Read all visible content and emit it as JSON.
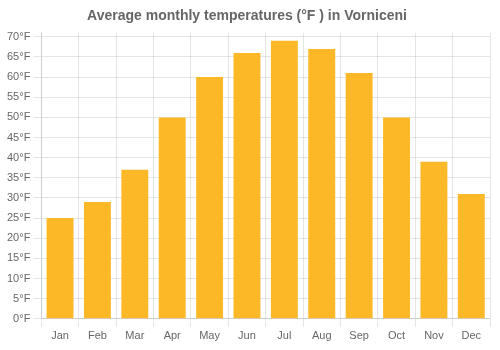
{
  "chart_data": {
    "type": "bar",
    "title": "Average monthly temperatures (°F ) in Vorniceni",
    "categories": [
      "Jan",
      "Feb",
      "Mar",
      "Apr",
      "May",
      "Jun",
      "Jul",
      "Aug",
      "Sep",
      "Oct",
      "Nov",
      "Dec"
    ],
    "values": [
      25,
      29,
      37,
      50,
      60,
      66,
      69,
      67,
      61,
      50,
      39,
      31
    ],
    "color": "#FDB827",
    "ylim": [
      0,
      71
    ],
    "yticks": [
      {
        "value": 0,
        "label": "0°F"
      },
      {
        "value": 5,
        "label": "5°F"
      },
      {
        "value": 10,
        "label": "10°F"
      },
      {
        "value": 15,
        "label": "15°F"
      },
      {
        "value": 20,
        "label": "20°F"
      },
      {
        "value": 25,
        "label": "25°F"
      },
      {
        "value": 30,
        "label": "30°F"
      },
      {
        "value": 35,
        "label": "35°F"
      },
      {
        "value": 40,
        "label": "40°F"
      },
      {
        "value": 45,
        "label": "45°F"
      },
      {
        "value": 50,
        "label": "50°F"
      },
      {
        "value": 55,
        "label": "55°F"
      },
      {
        "value": 60,
        "label": "60°F"
      },
      {
        "value": 65,
        "label": "65°F"
      },
      {
        "value": 70,
        "label": "70°F"
      }
    ],
    "grid": true
  }
}
